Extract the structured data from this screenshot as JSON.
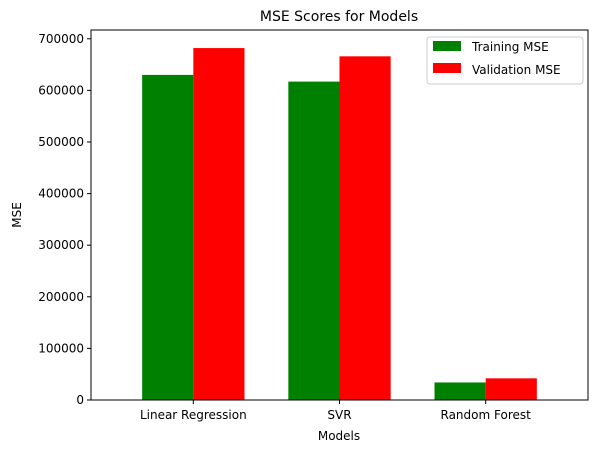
{
  "chart_data": {
    "type": "bar",
    "title": "MSE Scores for Models",
    "xlabel": "Models",
    "ylabel": "MSE",
    "categories": [
      "Linear Regression",
      "SVR",
      "Random Forest"
    ],
    "series": [
      {
        "name": "Training MSE",
        "color": "#008000",
        "values": [
          630000,
          617000,
          34000
        ]
      },
      {
        "name": "Validation MSE",
        "color": "#ff0000",
        "values": [
          682000,
          666000,
          42000
        ]
      }
    ],
    "ylim": [
      0,
      717000
    ],
    "yticks": [
      0,
      100000,
      200000,
      300000,
      400000,
      500000,
      600000,
      700000
    ],
    "ytick_labels": [
      "0",
      "100000",
      "200000",
      "300000",
      "400000",
      "500000",
      "600000",
      "700000"
    ],
    "grid": false,
    "legend_position": "top-right"
  }
}
